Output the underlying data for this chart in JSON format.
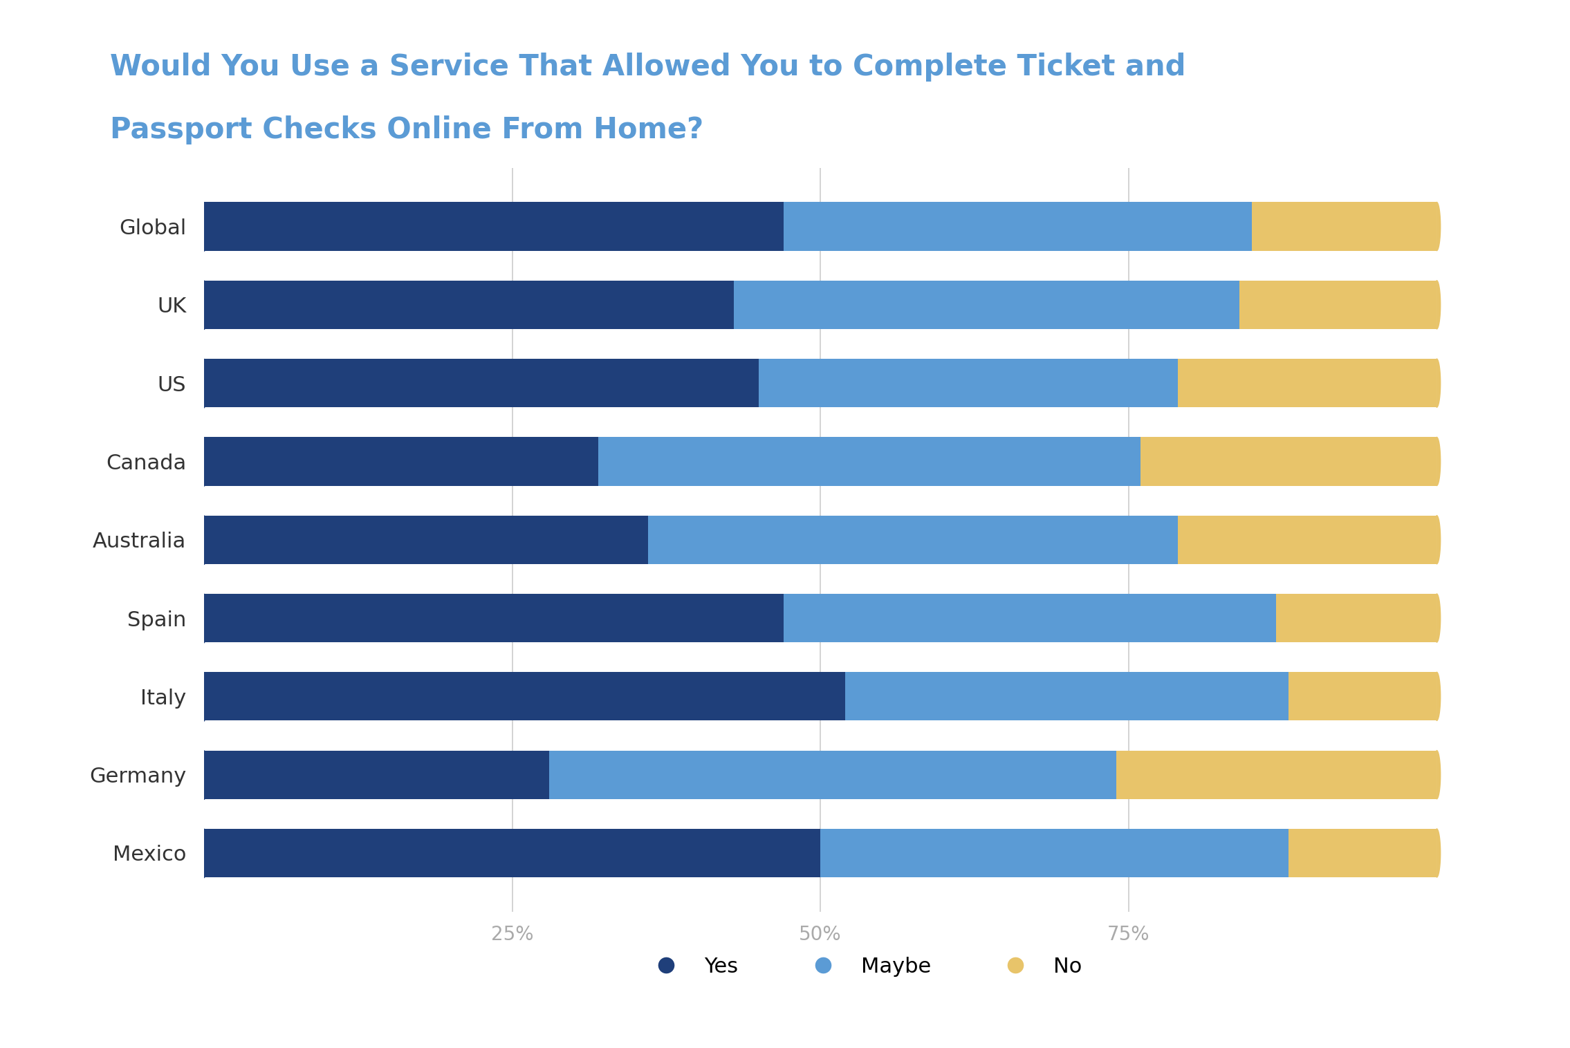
{
  "title_line1": "Would You Use a Service That Allowed You to Complete Ticket and",
  "title_line2": "Passport Checks Online From Home?",
  "title_color": "#5B9BD5",
  "categories": [
    "Global",
    "UK",
    "US",
    "Canada",
    "Australia",
    "Spain",
    "Italy",
    "Germany",
    "Mexico"
  ],
  "yes_values": [
    47,
    43,
    45,
    32,
    36,
    47,
    52,
    28,
    50
  ],
  "maybe_values": [
    38,
    41,
    34,
    44,
    43,
    40,
    36,
    46,
    38
  ],
  "no_values": [
    15,
    16,
    21,
    24,
    21,
    13,
    12,
    26,
    12
  ],
  "yes_color": "#1F3F7A",
  "maybe_color": "#5B9BD5",
  "no_color": "#E8C46A",
  "background_color": "#FFFFFF",
  "grid_color": "#CCCCCC",
  "label_color": "#AAAAAA",
  "ytick_color": "#333333",
  "legend_labels": [
    "Yes",
    "Maybe",
    "No"
  ],
  "bar_height": 0.62,
  "xlim": [
    0,
    107
  ],
  "xticks": [
    25,
    50,
    75
  ],
  "xticklabels": [
    "25%",
    "50%",
    "75%"
  ],
  "title_fontsize": 30,
  "tick_fontsize": 20,
  "ytick_fontsize": 22,
  "legend_fontsize": 22
}
